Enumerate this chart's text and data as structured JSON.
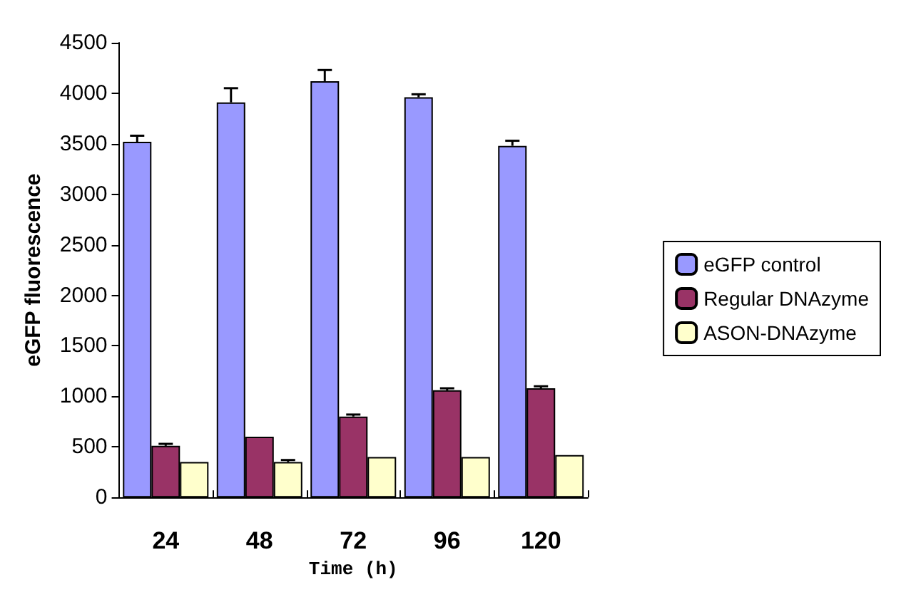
{
  "chart_data": {
    "type": "bar",
    "xlabel": "Time (h)",
    "ylabel": "eGFP fluorescence",
    "categories": [
      "24",
      "48",
      "72",
      "96",
      "120"
    ],
    "series": [
      {
        "name": "eGFP control",
        "color": "#9999ff",
        "values": [
          3520,
          3910,
          4120,
          3960,
          3480
        ],
        "errors": [
          60,
          140,
          110,
          30,
          50
        ]
      },
      {
        "name": "Regular DNAzyme",
        "color": "#993366",
        "values": [
          510,
          600,
          800,
          1060,
          1080
        ],
        "errors": [
          20,
          null,
          20,
          20,
          20
        ]
      },
      {
        "name": "ASON-DNAzyme",
        "color": "#ffffcc",
        "values": [
          350,
          350,
          400,
          400,
          420
        ],
        "errors": [
          null,
          20,
          null,
          null,
          null
        ]
      }
    ],
    "ylim": [
      0,
      4500
    ],
    "yticks": [
      0,
      500,
      1000,
      1500,
      2000,
      2500,
      3000,
      3500,
      4000,
      4500
    ],
    "grid": false,
    "legend": "right"
  }
}
